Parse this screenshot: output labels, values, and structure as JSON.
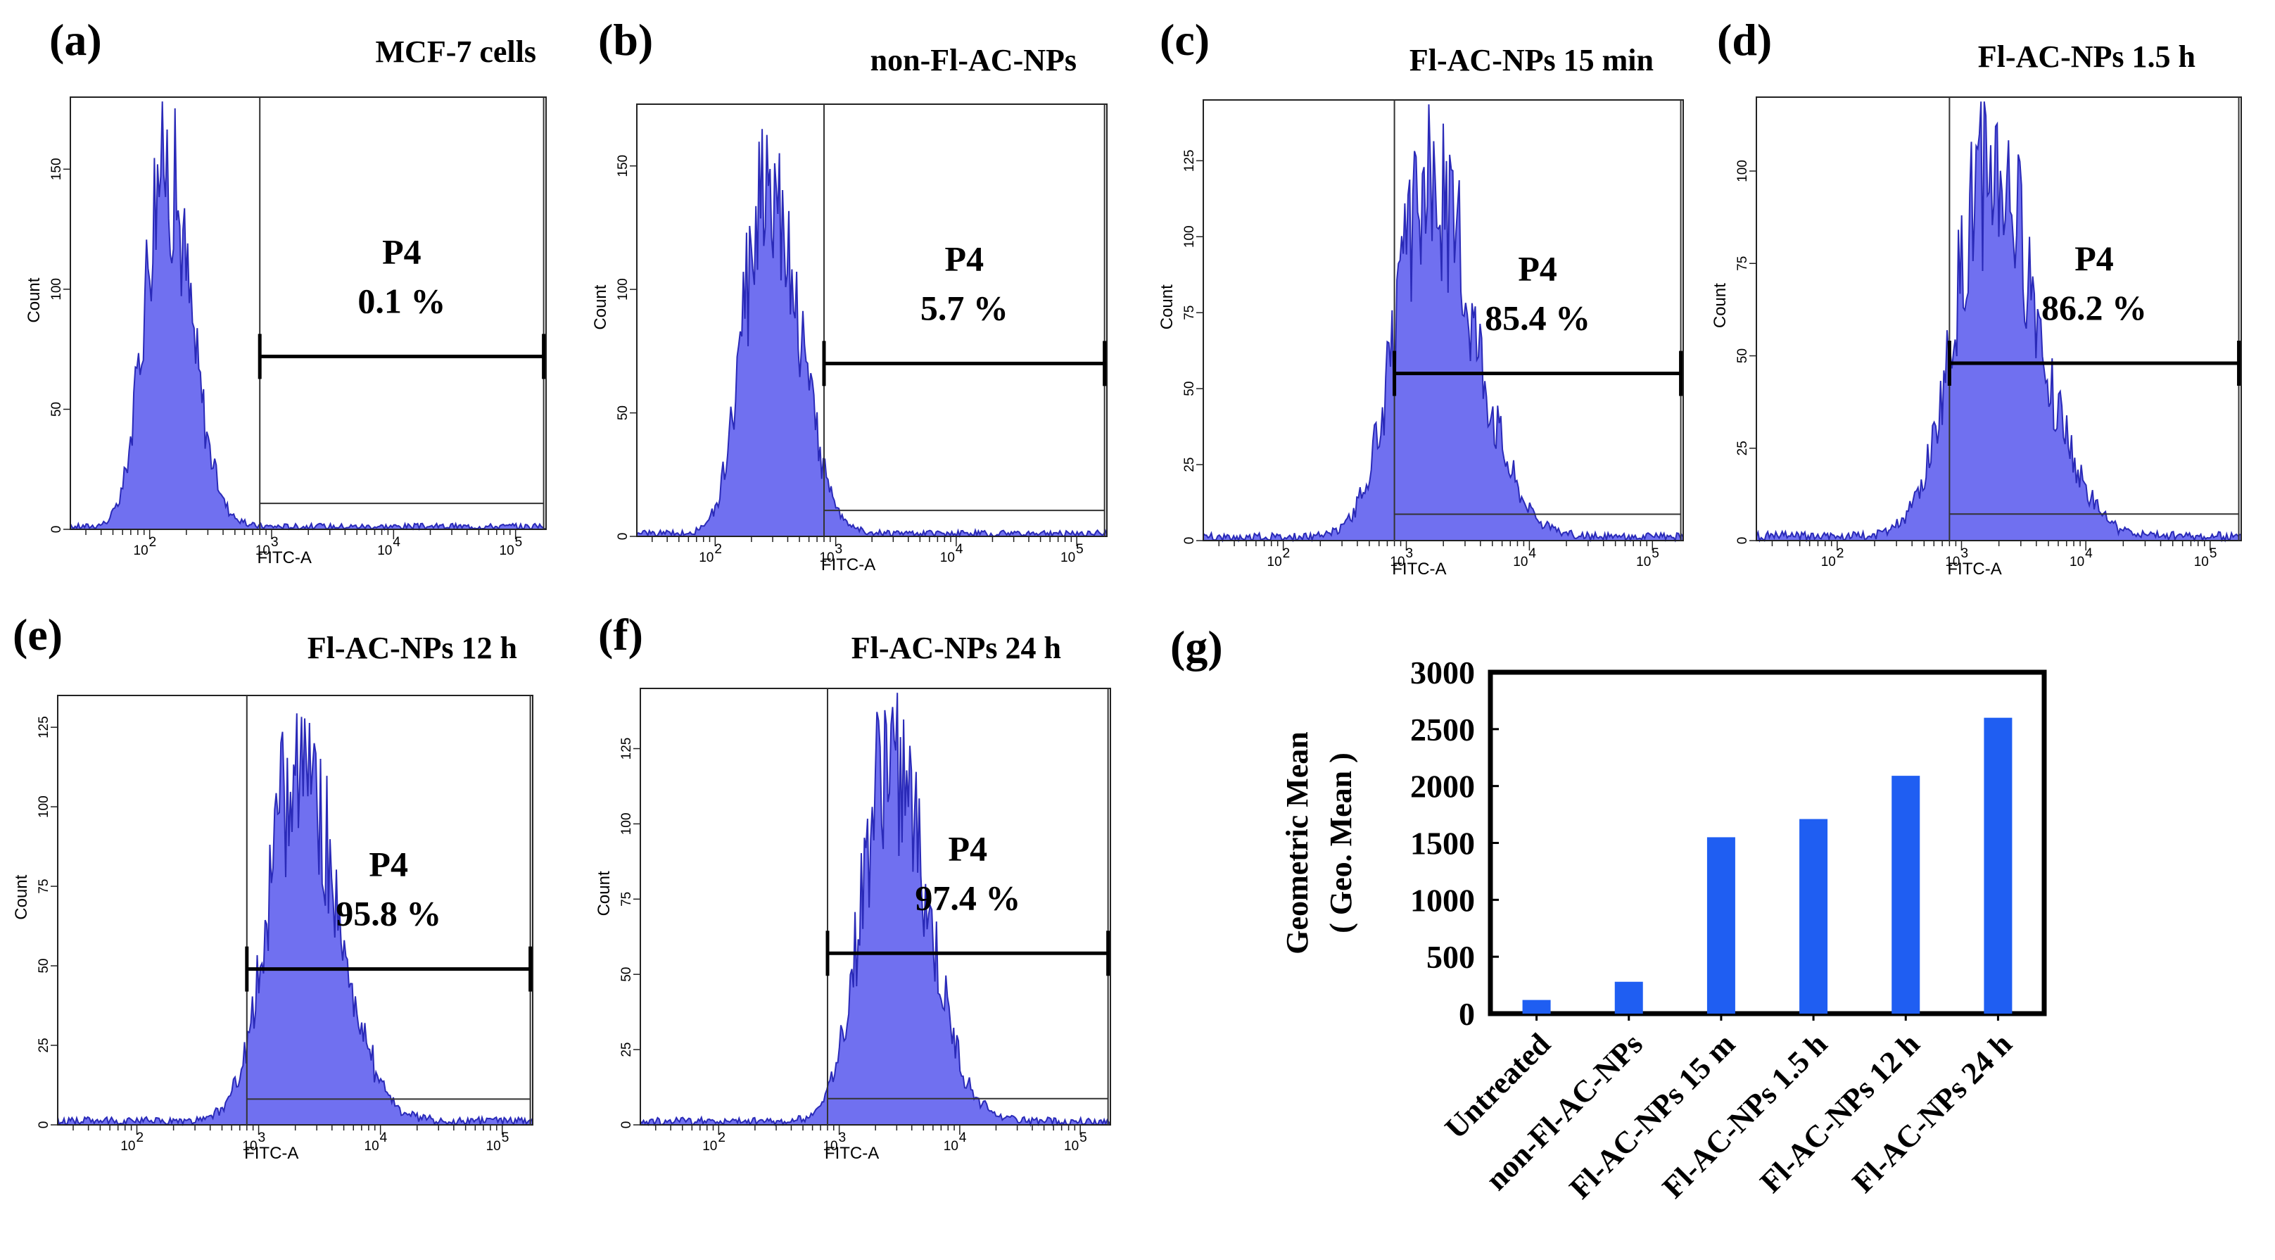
{
  "chart_data": [
    {
      "type": "histogram",
      "panel": "(a)",
      "title": "MCF-7 cells",
      "xlabel": "FITC-A",
      "ylabel": "Count",
      "x_scale": "log",
      "x_ticks": [
        "10",
        "2",
        "10",
        "3",
        "10",
        "4",
        "10",
        "5"
      ],
      "y_ticks": [
        "0",
        "50",
        "100",
        "150"
      ],
      "ylim": [
        0,
        180
      ],
      "peak_fitc": 130,
      "peak_count": 170,
      "spread_decades": 0.16,
      "gate": {
        "name": "P4",
        "percent": "0.1 %",
        "from_fitc": 800,
        "to_fitc": 170000,
        "marker_count": 72
      }
    },
    {
      "type": "histogram",
      "panel": "(b)",
      "title": "non-Fl-AC-NPs",
      "xlabel": "FITC-A",
      "ylabel": "Count",
      "x_scale": "log",
      "x_ticks": [
        "10",
        "2",
        "10",
        "3",
        "10",
        "4",
        "10",
        "5"
      ],
      "y_ticks": [
        "0",
        "50",
        "100",
        "150"
      ],
      "ylim": [
        0,
        175
      ],
      "peak_fitc": 270,
      "peak_count": 162,
      "spread_decades": 0.19,
      "gate": {
        "name": "P4",
        "percent": "5.7 %",
        "from_fitc": 800,
        "to_fitc": 170000,
        "marker_count": 70
      }
    },
    {
      "type": "histogram",
      "panel": "(c)",
      "title": "Fl-AC-NPs 15 min",
      "xlabel": "FITC-A",
      "ylabel": "Count",
      "x_scale": "log",
      "x_ticks": [
        "10",
        "2",
        "10",
        "3",
        "10",
        "4",
        "10",
        "5"
      ],
      "y_ticks": [
        "0",
        "25",
        "50",
        "75",
        "100",
        "125"
      ],
      "ylim": [
        0,
        145
      ],
      "peak_fitc": 1550,
      "peak_count": 128,
      "spread_decades": 0.27,
      "gate": {
        "name": "P4",
        "percent": "85.4 %",
        "from_fitc": 800,
        "to_fitc": 170000,
        "marker_count": 55
      }
    },
    {
      "type": "histogram",
      "panel": "(d)",
      "title": "Fl-AC-NPs 1.5 h",
      "xlabel": "FITC-A",
      "ylabel": "Count",
      "x_scale": "log",
      "x_ticks": [
        "10",
        "2",
        "10",
        "3",
        "10",
        "4",
        "10",
        "5"
      ],
      "y_ticks": [
        "0",
        "25",
        "50",
        "75",
        "100"
      ],
      "ylim": [
        0,
        120
      ],
      "peak_fitc": 1700,
      "peak_count": 110,
      "spread_decades": 0.28,
      "gate": {
        "name": "P4",
        "percent": "86.2 %",
        "from_fitc": 800,
        "to_fitc": 170000,
        "marker_count": 48
      }
    },
    {
      "type": "histogram",
      "panel": "(e)",
      "title": "Fl-AC-NPs 12 h",
      "xlabel": "FITC-A",
      "ylabel": "Count",
      "x_scale": "log",
      "x_ticks": [
        "10",
        "2",
        "10",
        "3",
        "10",
        "4",
        "10",
        "5"
      ],
      "y_ticks": [
        "0",
        "25",
        "50",
        "75",
        "100",
        "125"
      ],
      "ylim": [
        0,
        135
      ],
      "peak_fitc": 2100,
      "peak_count": 125,
      "spread_decades": 0.24,
      "gate": {
        "name": "P4",
        "percent": "95.8 %",
        "from_fitc": 800,
        "to_fitc": 170000,
        "marker_count": 49
      }
    },
    {
      "type": "histogram",
      "panel": "(f)",
      "title": "Fl-AC-NPs 24 h",
      "xlabel": "FITC-A",
      "ylabel": "Count",
      "x_scale": "log",
      "x_ticks": [
        "10",
        "2",
        "10",
        "3",
        "10",
        "4",
        "10",
        "5"
      ],
      "y_ticks": [
        "0",
        "25",
        "50",
        "75",
        "100",
        "125"
      ],
      "ylim": [
        0,
        145
      ],
      "peak_fitc": 2600,
      "peak_count": 135,
      "spread_decades": 0.23,
      "gate": {
        "name": "P4",
        "percent": "97.4 %",
        "from_fitc": 800,
        "to_fitc": 170000,
        "marker_count": 57
      }
    },
    {
      "type": "bar",
      "panel": "(g)",
      "title": "",
      "ylabel_lines": [
        "Geometric Mean",
        "( Geo. Mean )"
      ],
      "categories": [
        "Untreated",
        "non-Fl-AC-NPs",
        "Fl-AC-NPs 15 m",
        "Fl-AC-NPs 1.5 h",
        "Fl-AC-NPs 12 h",
        "Fl-AC-NPs 24 h"
      ],
      "values": [
        120,
        280,
        1550,
        1710,
        2090,
        2600
      ],
      "y_ticks": [
        "0",
        "500",
        "1000",
        "1500",
        "2000",
        "2500",
        "3000"
      ],
      "ylim": [
        0,
        3000
      ],
      "bar_color": "#1f5ef2"
    }
  ],
  "colors": {
    "histogram_fill": "#7070f0",
    "histogram_edge": "#2a2ab8",
    "gate_line": "#000000"
  }
}
